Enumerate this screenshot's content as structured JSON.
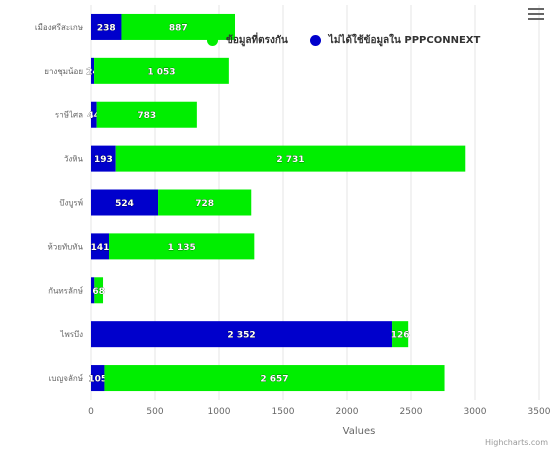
{
  "chart_data": {
    "type": "bar",
    "orientation": "horizontal",
    "stacked": true,
    "categories": [
      "เมืองศรีสะเกษ",
      "ยางชุมน้อย",
      "ราษีไศล",
      "วังหิน",
      "บึงบูรพ์",
      "ห้วยทับทัน",
      "กันทรลักษ์",
      "ไพรบึง",
      "เบญจลักษ์"
    ],
    "series": [
      {
        "name": "ไม่ได้ใช้ข้อมูลใน PPPCONNEXT",
        "color": "#0000cc",
        "values": [
          238,
          24,
          44,
          193,
          524,
          141,
          26,
          2352,
          105
        ]
      },
      {
        "name": "ข้อมูลที่ตรงกัน",
        "color": "#00ee00",
        "values": [
          887,
          1053,
          783,
          2731,
          728,
          1135,
          68,
          126,
          2657
        ]
      }
    ],
    "value_labels": [
      [
        "238",
        "24",
        "44",
        "193",
        "524",
        "141",
        "",
        "2 352",
        "105"
      ],
      [
        "887",
        "1 053",
        "783",
        "2 731",
        "728",
        "1 135",
        "68",
        "126",
        "2 657"
      ]
    ],
    "xlabel": "Values",
    "xlim": [
      0,
      3500
    ],
    "xticks": [
      0,
      500,
      1000,
      1500,
      2000,
      2500,
      3000,
      3500
    ],
    "grid": true,
    "legend_position": "top-right"
  },
  "credits": "Highcharts.com",
  "menu_icon": "hamburger-menu-icon"
}
